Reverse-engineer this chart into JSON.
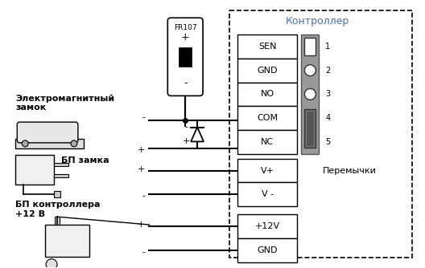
{
  "bg_color": "#ffffff",
  "wire_color": "#000000",
  "box_color": "#000000",
  "controller_label": {
    "text": "Контроллер",
    "color": "#4472c4"
  },
  "terminal_labels_top": [
    "SEN",
    "GND",
    "NO",
    "COM",
    "NC"
  ],
  "terminal_labels_bottom": [
    "V+",
    "V -"
  ],
  "terminal_labels_power": [
    "+12V",
    "GND"
  ],
  "jumper_label": "Перемычки",
  "fr107_label": "FR107",
  "label_lock": "Электромагнитный\nзамок",
  "label_pz": "БП замка",
  "label_pk": "БП контроллера\n+12 В"
}
